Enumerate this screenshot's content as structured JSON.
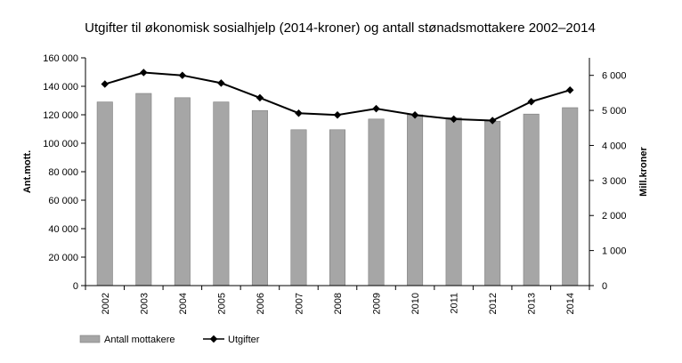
{
  "chart_data": {
    "type": "bar",
    "title": "Utgifter til økonomisk sosialhjelp (2014-kroner) og antall stønadsmottakere 2002–2014",
    "categories": [
      "2002",
      "2003",
      "2004",
      "2005",
      "2006",
      "2007",
      "2008",
      "2009",
      "2010",
      "2011",
      "2012",
      "2013",
      "2014"
    ],
    "series": [
      {
        "name": "Antall mottakere",
        "kind": "bar",
        "axis": "left",
        "color": "#a6a6a6",
        "values": [
          129000,
          135000,
          132000,
          129000,
          123000,
          109500,
          109500,
          117000,
          120000,
          118000,
          115500,
          120500,
          125000
        ]
      },
      {
        "name": "Utgifter",
        "kind": "line",
        "axis": "right",
        "color": "#000000",
        "values": [
          5750,
          6080,
          6000,
          5780,
          5360,
          4920,
          4870,
          5050,
          4870,
          4750,
          4710,
          5250,
          5580
        ]
      }
    ],
    "ylabel": "Ant.mott.",
    "y2label": "Mill.kroner",
    "ylim": [
      0,
      160000
    ],
    "y2lim": [
      0,
      6500
    ],
    "yticks": [
      "0",
      "20 000",
      "40 000",
      "60 000",
      "80 000",
      "100 000",
      "120 000",
      "140 000",
      "160 000"
    ],
    "y2ticks": [
      "0",
      "1 000",
      "2 000",
      "3 000",
      "4 000",
      "5 000",
      "6 000"
    ],
    "y2tick_values": [
      0,
      1000,
      2000,
      3000,
      4000,
      5000,
      6000
    ],
    "grid": false,
    "legend": "bottom-left"
  }
}
